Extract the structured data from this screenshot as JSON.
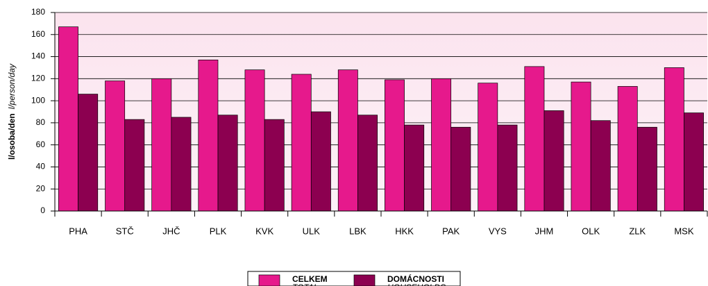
{
  "chart_data": {
    "type": "bar",
    "ylabel": "l/osoba/den",
    "ylabel_en": "l/person/day",
    "categories": [
      "PHA",
      "STČ",
      "JHČ",
      "PLK",
      "KVK",
      "ULK",
      "LBK",
      "HKK",
      "PAK",
      "VYS",
      "JHM",
      "OLK",
      "ZLK",
      "MSK"
    ],
    "series": [
      {
        "name": "CELKEM",
        "name_en": "TOTAL",
        "color": "#e6198c",
        "values": [
          167,
          118,
          120,
          137,
          128,
          124,
          128,
          119,
          120,
          116,
          131,
          117,
          113,
          130
        ]
      },
      {
        "name": "DOMÁCNOSTI",
        "name_en": "HOUSEHOLDS",
        "color": "#8c0050",
        "values": [
          106,
          83,
          85,
          87,
          83,
          90,
          87,
          78,
          76,
          78,
          91,
          82,
          76,
          89
        ]
      }
    ],
    "ylim": [
      0,
      180
    ],
    "yticks": [
      0,
      20,
      40,
      60,
      80,
      100,
      120,
      140,
      160,
      180
    ],
    "grid": true
  }
}
